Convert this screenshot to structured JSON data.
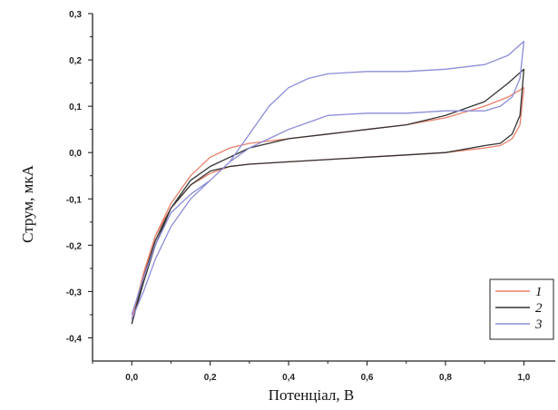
{
  "chart_data": {
    "type": "line",
    "xlabel": "Потенціал, В",
    "ylabel": "Струм, мкА",
    "xlim": [
      -0.1,
      1.08
    ],
    "ylim": [
      -0.45,
      0.3
    ],
    "x_ticks": [
      "0,0",
      "0,2",
      "0,4",
      "0,6",
      "0,8",
      "1,0"
    ],
    "x_tick_values": [
      0.0,
      0.2,
      0.4,
      0.6,
      0.8,
      1.0
    ],
    "y_ticks": [
      "0,3",
      "0,2",
      "0,1",
      "0,0",
      "-0,1",
      "-0,2",
      "-0,3",
      "-0,4"
    ],
    "y_tick_values": [
      0.3,
      0.2,
      0.1,
      0.0,
      -0.1,
      -0.2,
      -0.3,
      -0.4
    ],
    "grid": false,
    "legend_position": "bottom-right",
    "series": [
      {
        "name": "1",
        "color": "#e8806a",
        "points": [
          [
            0.0,
            -0.36
          ],
          [
            0.03,
            -0.26
          ],
          [
            0.06,
            -0.18
          ],
          [
            0.1,
            -0.11
          ],
          [
            0.15,
            -0.05
          ],
          [
            0.2,
            -0.01
          ],
          [
            0.25,
            0.01
          ],
          [
            0.3,
            0.02
          ],
          [
            0.4,
            0.03
          ],
          [
            0.5,
            0.04
          ],
          [
            0.6,
            0.05
          ],
          [
            0.7,
            0.06
          ],
          [
            0.8,
            0.075
          ],
          [
            0.9,
            0.1
          ],
          [
            0.96,
            0.12
          ],
          [
            1.0,
            0.14
          ],
          [
            0.99,
            0.06
          ],
          [
            0.97,
            0.03
          ],
          [
            0.94,
            0.015
          ],
          [
            0.9,
            0.01
          ],
          [
            0.8,
            0.0
          ],
          [
            0.7,
            -0.005
          ],
          [
            0.6,
            -0.01
          ],
          [
            0.5,
            -0.015
          ],
          [
            0.4,
            -0.02
          ],
          [
            0.3,
            -0.025
          ],
          [
            0.25,
            -0.03
          ],
          [
            0.2,
            -0.045
          ],
          [
            0.15,
            -0.07
          ],
          [
            0.1,
            -0.12
          ],
          [
            0.06,
            -0.18
          ],
          [
            0.03,
            -0.27
          ],
          [
            0.0,
            -0.37
          ]
        ]
      },
      {
        "name": "2",
        "color": "#333333",
        "points": [
          [
            0.0,
            -0.37
          ],
          [
            0.03,
            -0.27
          ],
          [
            0.06,
            -0.19
          ],
          [
            0.1,
            -0.12
          ],
          [
            0.15,
            -0.06
          ],
          [
            0.2,
            -0.03
          ],
          [
            0.25,
            -0.01
          ],
          [
            0.3,
            0.01
          ],
          [
            0.4,
            0.03
          ],
          [
            0.5,
            0.04
          ],
          [
            0.6,
            0.05
          ],
          [
            0.7,
            0.06
          ],
          [
            0.8,
            0.08
          ],
          [
            0.9,
            0.11
          ],
          [
            0.96,
            0.15
          ],
          [
            1.0,
            0.18
          ],
          [
            0.99,
            0.08
          ],
          [
            0.97,
            0.04
          ],
          [
            0.94,
            0.02
          ],
          [
            0.9,
            0.015
          ],
          [
            0.8,
            0.0
          ],
          [
            0.7,
            -0.005
          ],
          [
            0.6,
            -0.01
          ],
          [
            0.5,
            -0.015
          ],
          [
            0.4,
            -0.02
          ],
          [
            0.3,
            -0.025
          ],
          [
            0.25,
            -0.03
          ],
          [
            0.2,
            -0.04
          ],
          [
            0.15,
            -0.07
          ],
          [
            0.1,
            -0.12
          ],
          [
            0.06,
            -0.2
          ],
          [
            0.03,
            -0.28
          ],
          [
            0.0,
            -0.37
          ]
        ]
      },
      {
        "name": "3",
        "color": "#8c8cd8",
        "points": [
          [
            0.0,
            -0.35
          ],
          [
            0.03,
            -0.27
          ],
          [
            0.06,
            -0.2
          ],
          [
            0.1,
            -0.13
          ],
          [
            0.15,
            -0.09
          ],
          [
            0.2,
            -0.06
          ],
          [
            0.25,
            -0.02
          ],
          [
            0.3,
            0.04
          ],
          [
            0.35,
            0.1
          ],
          [
            0.4,
            0.14
          ],
          [
            0.45,
            0.16
          ],
          [
            0.5,
            0.17
          ],
          [
            0.6,
            0.175
          ],
          [
            0.7,
            0.175
          ],
          [
            0.8,
            0.18
          ],
          [
            0.9,
            0.19
          ],
          [
            0.96,
            0.21
          ],
          [
            1.0,
            0.24
          ],
          [
            0.99,
            0.16
          ],
          [
            0.97,
            0.12
          ],
          [
            0.94,
            0.1
          ],
          [
            0.9,
            0.09
          ],
          [
            0.8,
            0.09
          ],
          [
            0.7,
            0.085
          ],
          [
            0.6,
            0.085
          ],
          [
            0.5,
            0.08
          ],
          [
            0.45,
            0.065
          ],
          [
            0.4,
            0.05
          ],
          [
            0.35,
            0.03
          ],
          [
            0.3,
            0.01
          ],
          [
            0.25,
            -0.02
          ],
          [
            0.2,
            -0.06
          ],
          [
            0.15,
            -0.1
          ],
          [
            0.1,
            -0.16
          ],
          [
            0.06,
            -0.23
          ],
          [
            0.03,
            -0.3
          ],
          [
            0.0,
            -0.36
          ]
        ]
      }
    ]
  }
}
